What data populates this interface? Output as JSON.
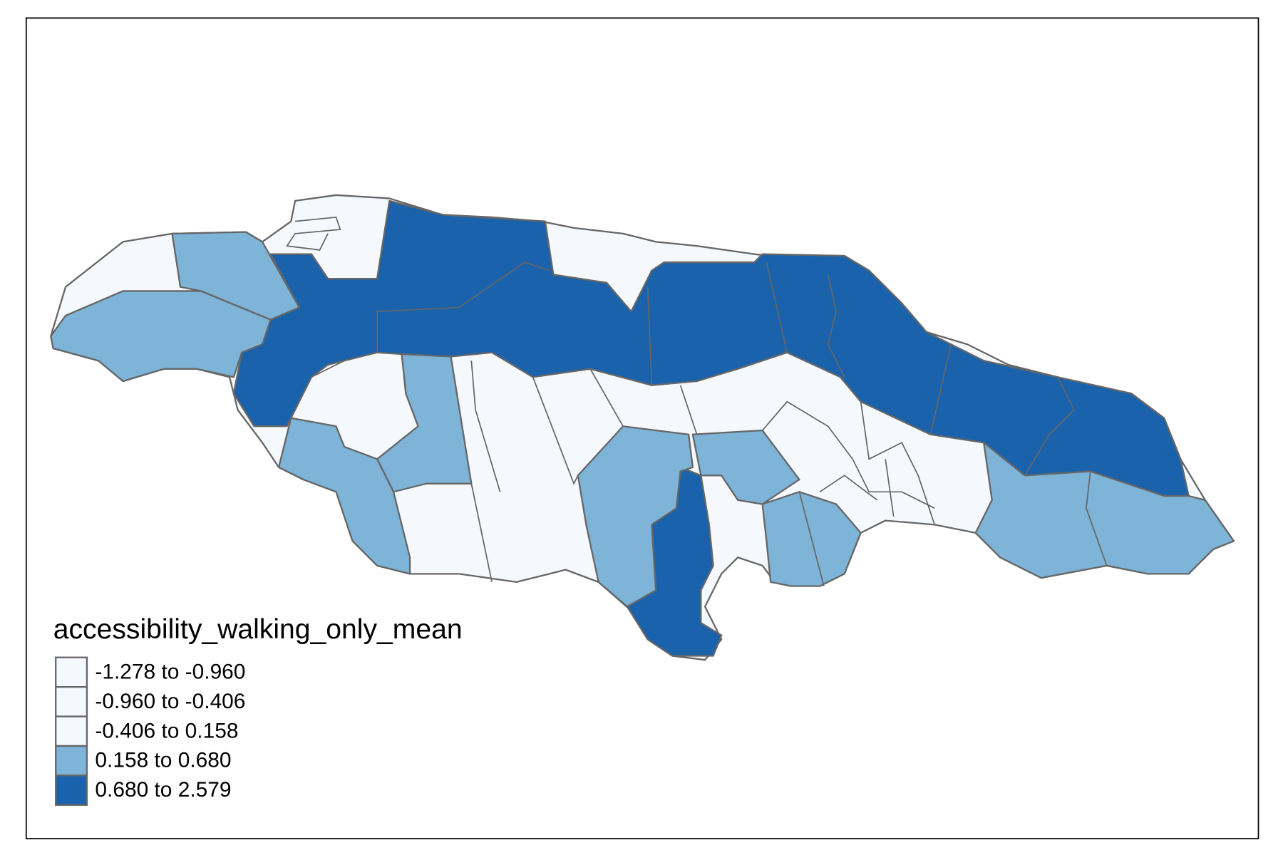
{
  "legend": {
    "title": "accessibility_walking_only_mean",
    "items": [
      {
        "label": "-1.278 to -0.960",
        "color": "#f5f9fe"
      },
      {
        "label": "-0.960 to -0.406",
        "color": "#f5f9fe"
      },
      {
        "label": "-0.406 to 0.158",
        "color": "#f5f9fe"
      },
      {
        "label": "0.158 to 0.680",
        "color": "#7db4d7"
      },
      {
        "label": "0.680 to 2.579",
        "color": "#1a63ac"
      }
    ]
  }
}
